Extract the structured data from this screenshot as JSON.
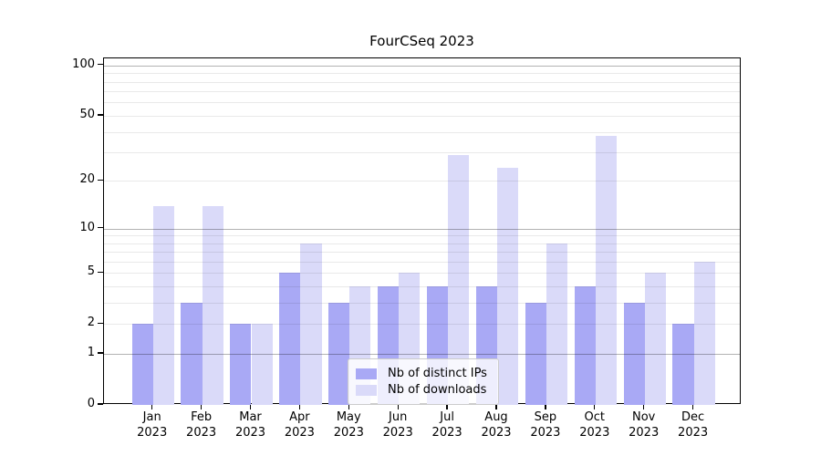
{
  "chart_data": {
    "type": "bar",
    "title": "FourCSeq 2023",
    "x_categories": [
      "Jan",
      "Feb",
      "Mar",
      "Apr",
      "May",
      "Jun",
      "Jul",
      "Aug",
      "Sep",
      "Oct",
      "Nov",
      "Dec"
    ],
    "x_year": "2023",
    "series": [
      {
        "name": "Nb of distinct IPs",
        "color": "#a9a9f5",
        "values": [
          2,
          3,
          2,
          5,
          3,
          4,
          4,
          4,
          3,
          4,
          3,
          2
        ]
      },
      {
        "name": "Nb of downloads",
        "color": "#dadaf9",
        "values": [
          14,
          14,
          2,
          8,
          4,
          5,
          29,
          24,
          8,
          38,
          5,
          6
        ]
      }
    ],
    "y_scale": "log10(value+1)",
    "ylim": [
      0,
      110
    ],
    "y_ticks": [
      {
        "value": 100,
        "label": "100"
      },
      {
        "value": 50,
        "label": "50"
      },
      {
        "value": 20,
        "label": "20"
      },
      {
        "value": 10,
        "label": "10"
      },
      {
        "value": 5,
        "label": "5"
      },
      {
        "value": 2,
        "label": "2"
      },
      {
        "value": 1,
        "label": "1"
      },
      {
        "value": 0,
        "label": "0"
      }
    ],
    "y_major_gridlines": [
      1,
      10,
      100
    ],
    "y_minor_gridlines": [
      2,
      3,
      4,
      5,
      6,
      7,
      8,
      9,
      20,
      30,
      40,
      50,
      60,
      70,
      80,
      90
    ],
    "grid": true,
    "legend_position": "lower center",
    "colors": {
      "grid_major": "#b3b3b3",
      "grid_minor": "#e9e9e9",
      "axis": "#000000",
      "background": "#ffffff"
    }
  }
}
